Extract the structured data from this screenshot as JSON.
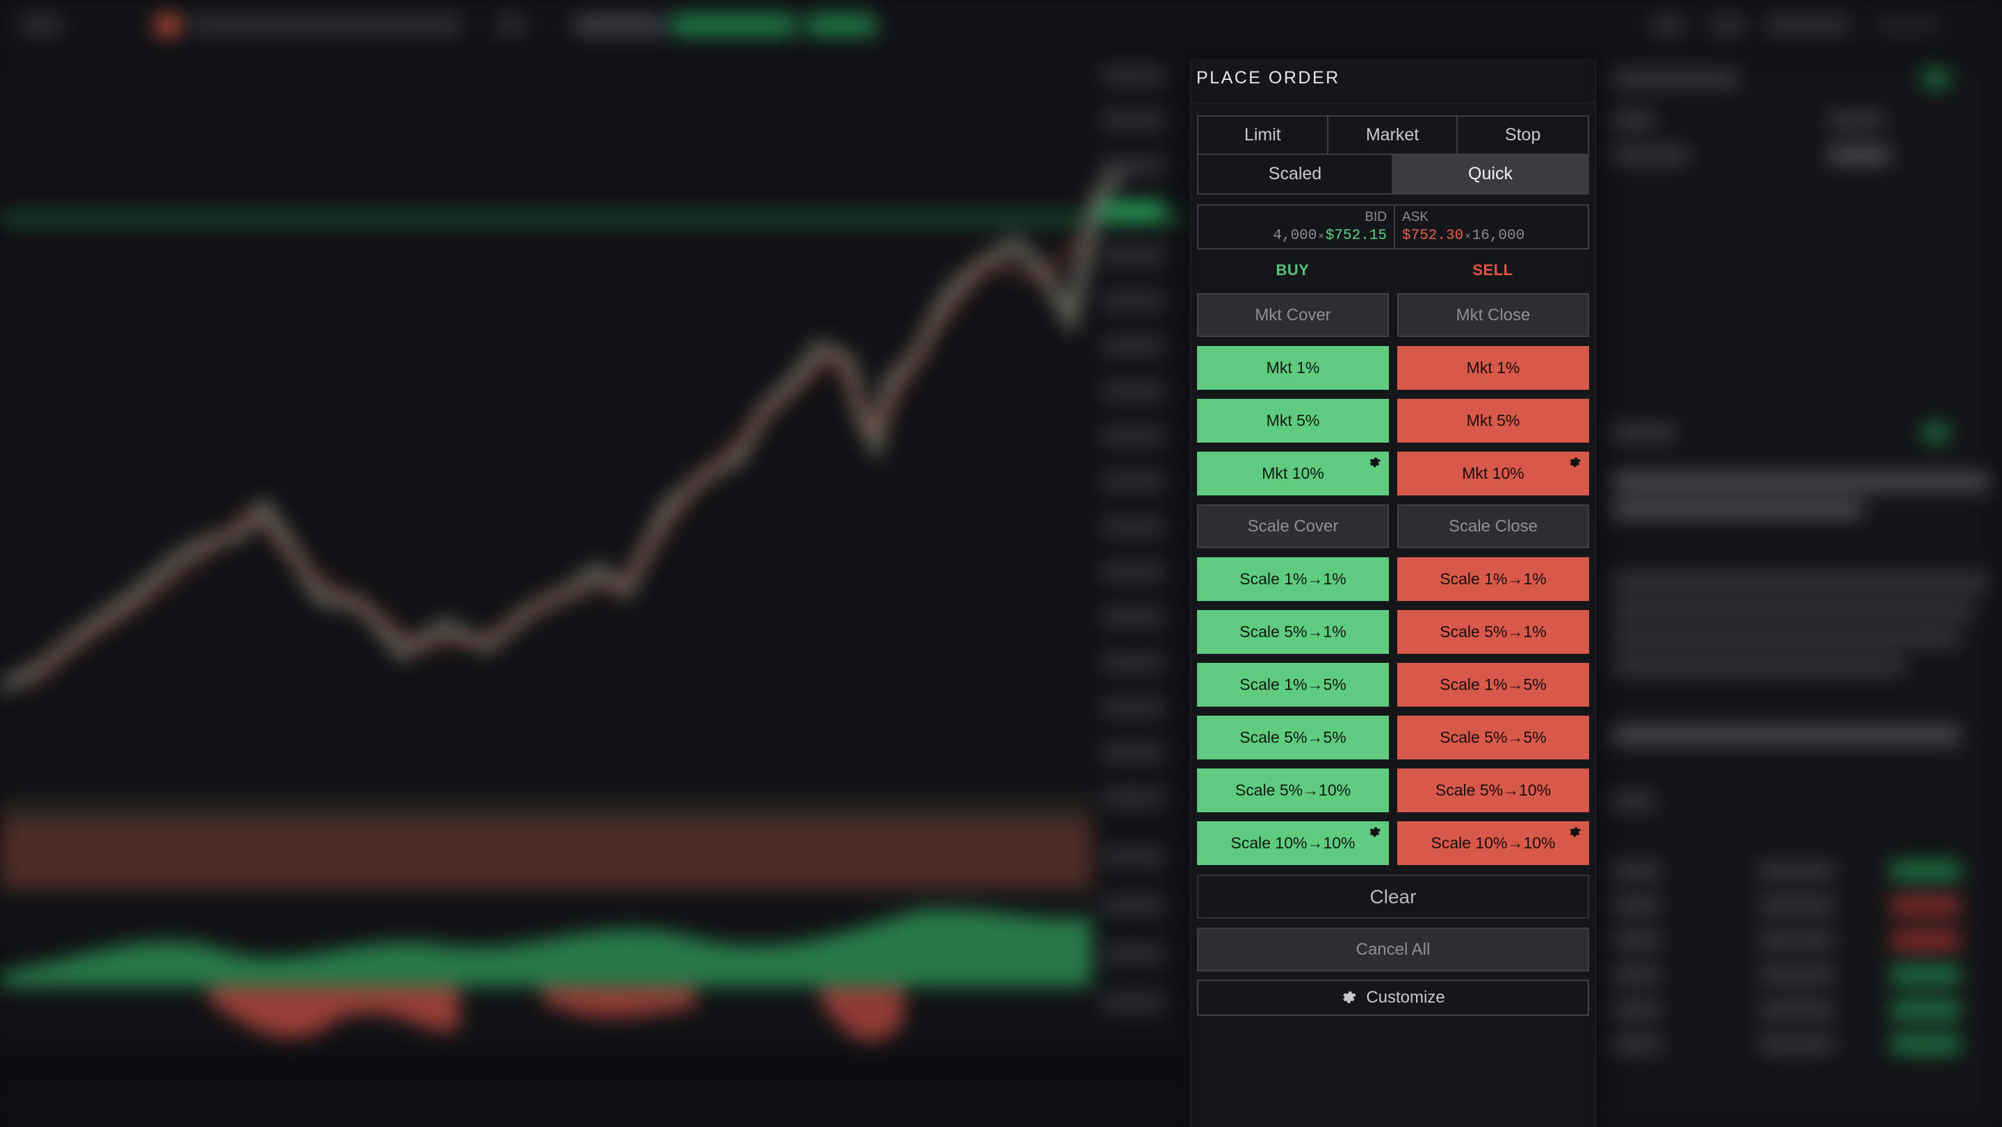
{
  "panel": {
    "title": "PLACE ORDER",
    "order_types_row1": [
      "Limit",
      "Market",
      "Stop"
    ],
    "order_types_row2": [
      "Scaled",
      "Quick"
    ],
    "active_type": "Quick"
  },
  "quote": {
    "bid_caption": "BID",
    "ask_caption": "ASK",
    "bid_size": "4,000",
    "bid_price": "$752.15",
    "ask_price": "$752.30",
    "ask_size": "16,000",
    "separator": "×"
  },
  "sides": {
    "buy": "BUY",
    "sell": "SELL"
  },
  "buttons": {
    "buy_mkt_cover": "Mkt Cover",
    "sell_mkt_close": "Mkt Close",
    "buy_mkt_1": "Mkt 1%",
    "sell_mkt_1": "Mkt 1%",
    "buy_mkt_5": "Mkt 5%",
    "sell_mkt_5": "Mkt 5%",
    "buy_mkt_10": "Mkt 10%",
    "sell_mkt_10": "Mkt 10%",
    "buy_scale_cover": "Scale Cover",
    "sell_scale_close": "Scale Close",
    "buy_scale_1_1": "Scale 1%→1%",
    "sell_scale_1_1": "Scale 1%→1%",
    "buy_scale_5_1": "Scale 5%→1%",
    "sell_scale_5_1": "Scale 5%→1%",
    "buy_scale_1_5": "Scale 1%→5%",
    "sell_scale_1_5": "Scale 1%→5%",
    "buy_scale_5_5": "Scale 5%→5%",
    "sell_scale_5_5": "Scale 5%→5%",
    "buy_scale_5_10": "Scale 5%→10%",
    "sell_scale_5_10": "Scale 5%→10%",
    "buy_scale_10_10": "Scale 10%→10%",
    "sell_scale_10_10": "Scale 10%→10%"
  },
  "actions": {
    "clear": "Clear",
    "cancel_all": "Cancel All",
    "customize": "Customize"
  },
  "icons": {
    "customize": "gear-icon",
    "button_settings": "gear-icon"
  },
  "colors": {
    "buy": "#5fcb7f",
    "sell": "#d7594a",
    "bid_text": "#5ed287",
    "ask_text": "#e8604f",
    "panel_bg": "#151619"
  }
}
